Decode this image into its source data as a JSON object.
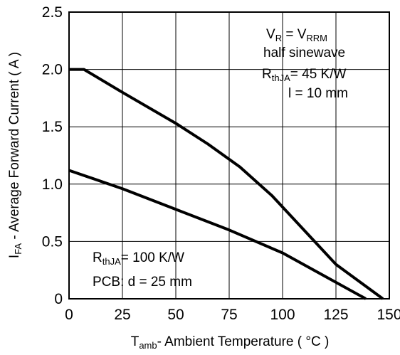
{
  "chart_data": {
    "type": "line",
    "xlabel": {
      "main": "T",
      "sub": "amb",
      "rest": "- Ambient Temperature ( °C )"
    },
    "ylabel": {
      "main": "I",
      "sub": "FA",
      "rest": "  - Average Forward Current ( A )"
    },
    "xlim": [
      0,
      150
    ],
    "ylim": [
      0,
      2.5
    ],
    "x_ticks": [
      "0",
      "25",
      "50",
      "75",
      "100",
      "125",
      "150"
    ],
    "x_tick_values": [
      0,
      25,
      50,
      75,
      100,
      125,
      150
    ],
    "y_ticks": [
      "0",
      "0.5",
      "1.0",
      "1.5",
      "2.0",
      "2.5"
    ],
    "y_tick_values": [
      0,
      0.5,
      1.0,
      1.5,
      2.0,
      2.5
    ],
    "grid": true,
    "series": [
      {
        "points": [
          [
            0,
            2.0
          ],
          [
            7,
            2.0
          ],
          [
            25,
            1.8
          ],
          [
            50,
            1.53
          ],
          [
            65,
            1.35
          ],
          [
            80,
            1.15
          ],
          [
            95,
            0.9
          ],
          [
            110,
            0.6
          ],
          [
            125,
            0.3
          ],
          [
            147,
            0.0
          ]
        ]
      },
      {
        "points": [
          [
            0,
            1.12
          ],
          [
            25,
            0.96
          ],
          [
            50,
            0.78
          ],
          [
            75,
            0.6
          ],
          [
            100,
            0.4
          ],
          [
            139,
            0.0
          ]
        ]
      }
    ],
    "annotations": {
      "top_right": [
        {
          "main": "V",
          "sub": "R",
          "rest": " = V",
          "sub2": "RRM"
        },
        {
          "text": "half sinewave"
        },
        {
          "main": "R",
          "sub": "thJA",
          "rest": "= 45 K/W"
        },
        {
          "text": "l = 10 mm"
        }
      ],
      "bottom_left": [
        {
          "main": "R",
          "sub": "thJA",
          "rest": "= 100 K/W"
        },
        {
          "text": "PCB: d = 25 mm"
        }
      ]
    },
    "line_color": "#000000"
  }
}
